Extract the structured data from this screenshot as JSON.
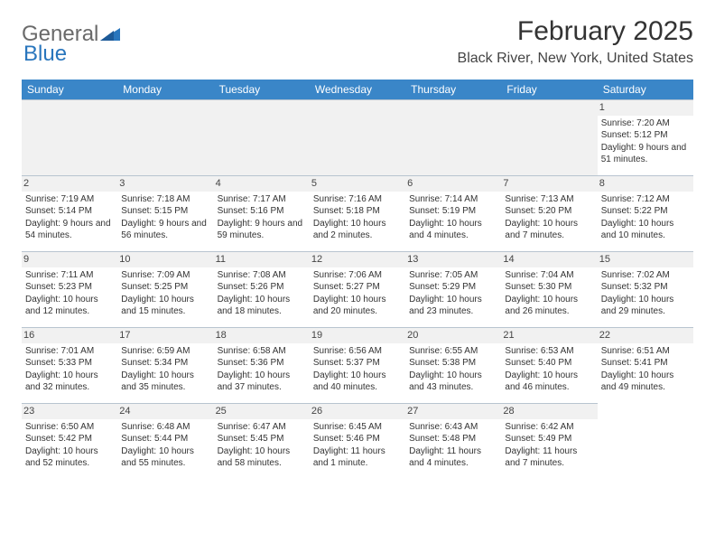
{
  "logo": {
    "text1": "General",
    "text2": "Blue"
  },
  "title": "February 2025",
  "location": "Black River, New York, United States",
  "colors": {
    "header_bg": "#3a86c8",
    "header_text": "#ffffff",
    "daynum_bg": "#f1f1f1",
    "border": "#b8c4d0",
    "text": "#333333",
    "logo_blue": "#2976bd"
  },
  "weekdays": [
    "Sunday",
    "Monday",
    "Tuesday",
    "Wednesday",
    "Thursday",
    "Friday",
    "Saturday"
  ],
  "layout": {
    "columns": 7,
    "rows": 5,
    "blank_leading": 6
  },
  "days": [
    {
      "n": "1",
      "sunrise": "Sunrise: 7:20 AM",
      "sunset": "Sunset: 5:12 PM",
      "daylight": "Daylight: 9 hours and 51 minutes."
    },
    {
      "n": "2",
      "sunrise": "Sunrise: 7:19 AM",
      "sunset": "Sunset: 5:14 PM",
      "daylight": "Daylight: 9 hours and 54 minutes."
    },
    {
      "n": "3",
      "sunrise": "Sunrise: 7:18 AM",
      "sunset": "Sunset: 5:15 PM",
      "daylight": "Daylight: 9 hours and 56 minutes."
    },
    {
      "n": "4",
      "sunrise": "Sunrise: 7:17 AM",
      "sunset": "Sunset: 5:16 PM",
      "daylight": "Daylight: 9 hours and 59 minutes."
    },
    {
      "n": "5",
      "sunrise": "Sunrise: 7:16 AM",
      "sunset": "Sunset: 5:18 PM",
      "daylight": "Daylight: 10 hours and 2 minutes."
    },
    {
      "n": "6",
      "sunrise": "Sunrise: 7:14 AM",
      "sunset": "Sunset: 5:19 PM",
      "daylight": "Daylight: 10 hours and 4 minutes."
    },
    {
      "n": "7",
      "sunrise": "Sunrise: 7:13 AM",
      "sunset": "Sunset: 5:20 PM",
      "daylight": "Daylight: 10 hours and 7 minutes."
    },
    {
      "n": "8",
      "sunrise": "Sunrise: 7:12 AM",
      "sunset": "Sunset: 5:22 PM",
      "daylight": "Daylight: 10 hours and 10 minutes."
    },
    {
      "n": "9",
      "sunrise": "Sunrise: 7:11 AM",
      "sunset": "Sunset: 5:23 PM",
      "daylight": "Daylight: 10 hours and 12 minutes."
    },
    {
      "n": "10",
      "sunrise": "Sunrise: 7:09 AM",
      "sunset": "Sunset: 5:25 PM",
      "daylight": "Daylight: 10 hours and 15 minutes."
    },
    {
      "n": "11",
      "sunrise": "Sunrise: 7:08 AM",
      "sunset": "Sunset: 5:26 PM",
      "daylight": "Daylight: 10 hours and 18 minutes."
    },
    {
      "n": "12",
      "sunrise": "Sunrise: 7:06 AM",
      "sunset": "Sunset: 5:27 PM",
      "daylight": "Daylight: 10 hours and 20 minutes."
    },
    {
      "n": "13",
      "sunrise": "Sunrise: 7:05 AM",
      "sunset": "Sunset: 5:29 PM",
      "daylight": "Daylight: 10 hours and 23 minutes."
    },
    {
      "n": "14",
      "sunrise": "Sunrise: 7:04 AM",
      "sunset": "Sunset: 5:30 PM",
      "daylight": "Daylight: 10 hours and 26 minutes."
    },
    {
      "n": "15",
      "sunrise": "Sunrise: 7:02 AM",
      "sunset": "Sunset: 5:32 PM",
      "daylight": "Daylight: 10 hours and 29 minutes."
    },
    {
      "n": "16",
      "sunrise": "Sunrise: 7:01 AM",
      "sunset": "Sunset: 5:33 PM",
      "daylight": "Daylight: 10 hours and 32 minutes."
    },
    {
      "n": "17",
      "sunrise": "Sunrise: 6:59 AM",
      "sunset": "Sunset: 5:34 PM",
      "daylight": "Daylight: 10 hours and 35 minutes."
    },
    {
      "n": "18",
      "sunrise": "Sunrise: 6:58 AM",
      "sunset": "Sunset: 5:36 PM",
      "daylight": "Daylight: 10 hours and 37 minutes."
    },
    {
      "n": "19",
      "sunrise": "Sunrise: 6:56 AM",
      "sunset": "Sunset: 5:37 PM",
      "daylight": "Daylight: 10 hours and 40 minutes."
    },
    {
      "n": "20",
      "sunrise": "Sunrise: 6:55 AM",
      "sunset": "Sunset: 5:38 PM",
      "daylight": "Daylight: 10 hours and 43 minutes."
    },
    {
      "n": "21",
      "sunrise": "Sunrise: 6:53 AM",
      "sunset": "Sunset: 5:40 PM",
      "daylight": "Daylight: 10 hours and 46 minutes."
    },
    {
      "n": "22",
      "sunrise": "Sunrise: 6:51 AM",
      "sunset": "Sunset: 5:41 PM",
      "daylight": "Daylight: 10 hours and 49 minutes."
    },
    {
      "n": "23",
      "sunrise": "Sunrise: 6:50 AM",
      "sunset": "Sunset: 5:42 PM",
      "daylight": "Daylight: 10 hours and 52 minutes."
    },
    {
      "n": "24",
      "sunrise": "Sunrise: 6:48 AM",
      "sunset": "Sunset: 5:44 PM",
      "daylight": "Daylight: 10 hours and 55 minutes."
    },
    {
      "n": "25",
      "sunrise": "Sunrise: 6:47 AM",
      "sunset": "Sunset: 5:45 PM",
      "daylight": "Daylight: 10 hours and 58 minutes."
    },
    {
      "n": "26",
      "sunrise": "Sunrise: 6:45 AM",
      "sunset": "Sunset: 5:46 PM",
      "daylight": "Daylight: 11 hours and 1 minute."
    },
    {
      "n": "27",
      "sunrise": "Sunrise: 6:43 AM",
      "sunset": "Sunset: 5:48 PM",
      "daylight": "Daylight: 11 hours and 4 minutes."
    },
    {
      "n": "28",
      "sunrise": "Sunrise: 6:42 AM",
      "sunset": "Sunset: 5:49 PM",
      "daylight": "Daylight: 11 hours and 7 minutes."
    }
  ]
}
